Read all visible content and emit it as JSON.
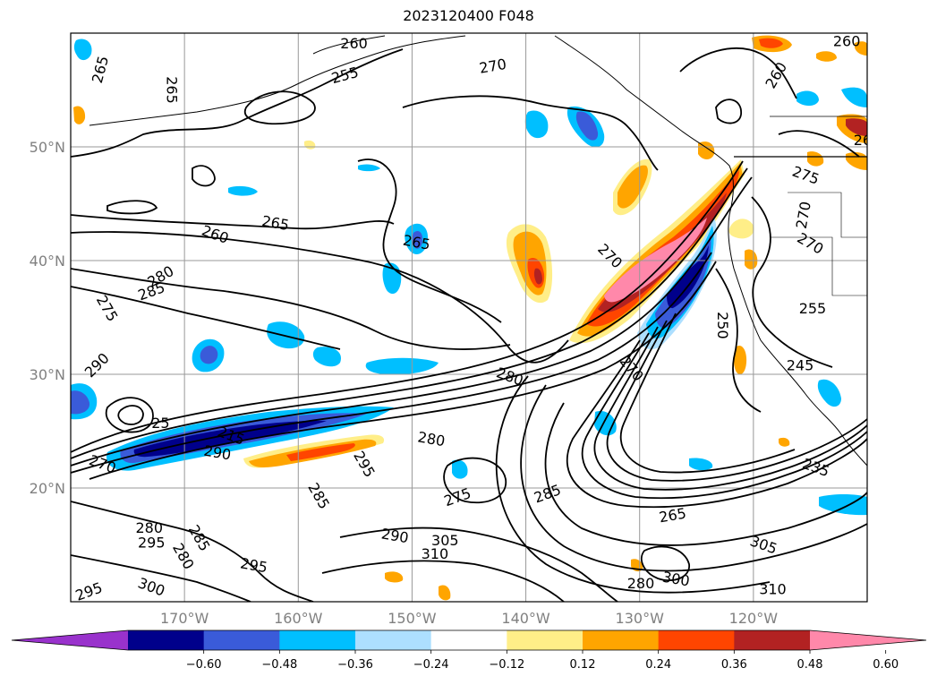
{
  "title": "2023120400 F048",
  "map": {
    "lat_range": [
      10,
      60
    ],
    "lon_range": [
      -180,
      -110
    ],
    "lat_ticks": [
      {
        "value": 20,
        "label": "20°N"
      },
      {
        "value": 30,
        "label": "30°N"
      },
      {
        "value": 40,
        "label": "40°N"
      },
      {
        "value": 50,
        "label": "50°N"
      }
    ],
    "lon_ticks": [
      {
        "value": -170,
        "label": "170°W"
      },
      {
        "value": -160,
        "label": "160°W"
      },
      {
        "value": -150,
        "label": "150°W"
      },
      {
        "value": -140,
        "label": "140°W"
      },
      {
        "value": -130,
        "label": "130°W"
      },
      {
        "value": -120,
        "label": "120°W"
      }
    ],
    "gridlines": true
  },
  "colorbar": {
    "levels": [
      -0.72,
      -0.6,
      -0.48,
      -0.36,
      -0.24,
      -0.12,
      0.12,
      0.24,
      0.36,
      0.48,
      0.6,
      0.72
    ],
    "tick_labels": [
      "−0.60",
      "−0.48",
      "−0.36",
      "−0.24",
      "−0.12",
      "0.12",
      "0.24",
      "0.36",
      "0.48",
      "0.60"
    ],
    "colors": [
      "#9932CC",
      "#00008B",
      "#3A5BD9",
      "#00BFFF",
      "#ADDFFF",
      "#FFFFFF",
      "#FFEE88",
      "#FFA500",
      "#FF4500",
      "#B22222",
      "#FF88AA"
    ],
    "extend": "both"
  },
  "contour_labels": [
    {
      "text": "265",
      "lon": -177.4,
      "lat": 56.8,
      "rot": -75
    },
    {
      "text": "265",
      "lon": -171.1,
      "lat": 55.0,
      "rot": 90
    },
    {
      "text": "260",
      "lon": -155.1,
      "lat": 59.1,
      "rot": 0
    },
    {
      "text": "255",
      "lon": -155.9,
      "lat": 56.3,
      "rot": -15
    },
    {
      "text": "270",
      "lon": -142.9,
      "lat": 57.1,
      "rot": -10
    },
    {
      "text": "260",
      "lon": -111.8,
      "lat": 59.3,
      "rot": 0
    },
    {
      "text": "260",
      "lon": -118.0,
      "lat": 56.3,
      "rot": -60
    },
    {
      "text": "26",
      "lon": -110.4,
      "lat": 50.6,
      "rot": 0
    },
    {
      "text": "260",
      "lon": -167.3,
      "lat": 42.3,
      "rot": 20
    },
    {
      "text": "265",
      "lon": -162.0,
      "lat": 43.3,
      "rot": 10
    },
    {
      "text": "265",
      "lon": -149.6,
      "lat": 41.6,
      "rot": 10
    },
    {
      "text": "275",
      "lon": -115.4,
      "lat": 47.5,
      "rot": 20
    },
    {
      "text": "270",
      "lon": -115.6,
      "lat": 44.0,
      "rot": -80
    },
    {
      "text": "270",
      "lon": -115.0,
      "lat": 41.5,
      "rot": 30
    },
    {
      "text": "270",
      "lon": -132.6,
      "lat": 40.4,
      "rot": 45
    },
    {
      "text": "255",
      "lon": -114.8,
      "lat": 35.8,
      "rot": 0
    },
    {
      "text": "250",
      "lon": -122.7,
      "lat": 34.3,
      "rot": 90
    },
    {
      "text": "245",
      "lon": -115.9,
      "lat": 30.8,
      "rot": 0
    },
    {
      "text": "235",
      "lon": -114.5,
      "lat": 21.8,
      "rot": 20
    },
    {
      "text": "280",
      "lon": -172.1,
      "lat": 38.6,
      "rot": -30
    },
    {
      "text": "285",
      "lon": -172.9,
      "lat": 37.3,
      "rot": -20
    },
    {
      "text": "275",
      "lon": -176.8,
      "lat": 35.8,
      "rot": 60
    },
    {
      "text": "290",
      "lon": -177.7,
      "lat": 30.8,
      "rot": -45
    },
    {
      "text": "270",
      "lon": -177.2,
      "lat": 22.1,
      "rot": 20
    },
    {
      "text": "280",
      "lon": -141.4,
      "lat": 29.8,
      "rot": 20
    },
    {
      "text": "280",
      "lon": -148.3,
      "lat": 24.3,
      "rot": 10
    },
    {
      "text": "275",
      "lon": -146.0,
      "lat": 19.2,
      "rot": -20
    },
    {
      "text": "285",
      "lon": -138.1,
      "lat": 19.5,
      "rot": -20
    },
    {
      "text": "295",
      "lon": -154.2,
      "lat": 22.1,
      "rot": 60
    },
    {
      "text": "285",
      "lon": -158.2,
      "lat": 19.3,
      "rot": 60
    },
    {
      "text": "290",
      "lon": -151.5,
      "lat": 15.8,
      "rot": 10
    },
    {
      "text": "305",
      "lon": -147.1,
      "lat": 15.4,
      "rot": 0
    },
    {
      "text": "310",
      "lon": -148.0,
      "lat": 14.2,
      "rot": 0
    },
    {
      "text": "295",
      "lon": -163.9,
      "lat": 13.2,
      "rot": 10
    },
    {
      "text": "300",
      "lon": -172.9,
      "lat": 11.3,
      "rot": 20
    },
    {
      "text": "295",
      "lon": -178.4,
      "lat": 10.9,
      "rot": -20
    },
    {
      "text": "280",
      "lon": -173.1,
      "lat": 16.5,
      "rot": 0
    },
    {
      "text": "295",
      "lon": -172.9,
      "lat": 15.2,
      "rot": 0
    },
    {
      "text": "285",
      "lon": -168.7,
      "lat": 15.6,
      "rot": 60
    },
    {
      "text": "280",
      "lon": -170.1,
      "lat": 14.0,
      "rot": 60
    },
    {
      "text": "265",
      "lon": -127.1,
      "lat": 17.6,
      "rot": -10
    },
    {
      "text": "280",
      "lon": -129.9,
      "lat": 11.6,
      "rot": 0
    },
    {
      "text": "300",
      "lon": -126.8,
      "lat": 12.0,
      "rot": 10
    },
    {
      "text": "305",
      "lon": -119.1,
      "lat": 15.0,
      "rot": 20
    },
    {
      "text": "310",
      "lon": -118.3,
      "lat": 11.1,
      "rot": 0
    },
    {
      "text": "215",
      "lon": -165.9,
      "lat": 24.6,
      "rot": 20
    },
    {
      "text": "290",
      "lon": -167.1,
      "lat": 23.1,
      "rot": 10
    },
    {
      "text": "25",
      "lon": -172.1,
      "lat": 25.7,
      "rot": 0
    },
    {
      "text": "270",
      "lon": -130.7,
      "lat": 30.5,
      "rot": 50
    }
  ]
}
